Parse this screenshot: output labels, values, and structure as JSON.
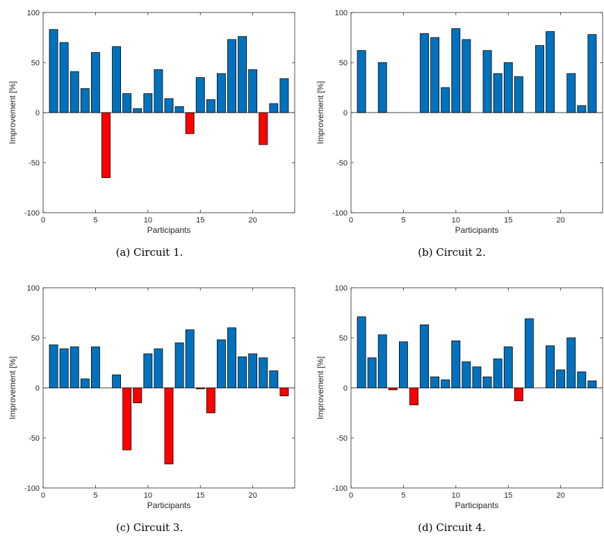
{
  "colors": {
    "positive": "#0072BD",
    "negative": "#FF0000"
  },
  "chart_data": [
    {
      "type": "bar",
      "caption": "(a)  Circuit 1.",
      "xlabel": "Participants",
      "ylabel": "Improvement [%]",
      "xlim": [
        0,
        24
      ],
      "ylim": [
        -100,
        100
      ],
      "xticks": [
        0,
        5,
        10,
        15,
        20
      ],
      "yticks": [
        -100,
        -50,
        0,
        50,
        100
      ],
      "categories": [
        1,
        2,
        3,
        4,
        5,
        6,
        7,
        8,
        9,
        10,
        11,
        12,
        13,
        14,
        15,
        16,
        17,
        18,
        19,
        20,
        21,
        22,
        23
      ],
      "values": [
        83,
        70,
        41,
        24,
        60,
        -65,
        66,
        19,
        4,
        19,
        43,
        14,
        6,
        -21,
        35,
        13,
        39,
        73,
        76,
        43,
        -32,
        9,
        34
      ]
    },
    {
      "type": "bar",
      "caption": "(b)  Circuit 2.",
      "xlabel": "Participants",
      "ylabel": "Improvement [%]",
      "xlim": [
        0,
        24
      ],
      "ylim": [
        -100,
        100
      ],
      "xticks": [
        0,
        5,
        10,
        15,
        20
      ],
      "yticks": [
        -100,
        -50,
        0,
        50,
        100
      ],
      "categories": [
        1,
        2,
        3,
        4,
        5,
        6,
        7,
        8,
        9,
        10,
        11,
        12,
        13,
        14,
        15,
        16,
        17,
        18,
        19,
        20,
        21,
        22,
        23
      ],
      "values": [
        62,
        0,
        50,
        0,
        0,
        0,
        79,
        75,
        25,
        84,
        73,
        0,
        62,
        39,
        50,
        36,
        0,
        67,
        81,
        0,
        39,
        7,
        78
      ]
    },
    {
      "type": "bar",
      "caption": "(c)  Circuit 3.",
      "xlabel": "Participants",
      "ylabel": "Improvement [%]",
      "xlim": [
        0,
        24
      ],
      "ylim": [
        -100,
        100
      ],
      "xticks": [
        0,
        5,
        10,
        15,
        20
      ],
      "yticks": [
        -100,
        -50,
        0,
        50,
        100
      ],
      "categories": [
        1,
        2,
        3,
        4,
        5,
        6,
        7,
        8,
        9,
        10,
        11,
        12,
        13,
        14,
        15,
        16,
        17,
        18,
        19,
        20,
        21,
        22,
        23
      ],
      "values": [
        43,
        39,
        41,
        9,
        41,
        0,
        13,
        -62,
        -15,
        34,
        39,
        -76,
        45,
        58,
        -1,
        -25,
        48,
        60,
        31,
        34,
        30,
        17,
        -8
      ]
    },
    {
      "type": "bar",
      "caption": "(d)  Circuit 4.",
      "xlabel": "Participants",
      "ylabel": "Improvement [%]",
      "xlim": [
        0,
        24
      ],
      "ylim": [
        -100,
        100
      ],
      "xticks": [
        0,
        5,
        10,
        15,
        20
      ],
      "yticks": [
        -100,
        -50,
        0,
        50,
        100
      ],
      "categories": [
        1,
        2,
        3,
        4,
        5,
        6,
        7,
        8,
        9,
        10,
        11,
        12,
        13,
        14,
        15,
        16,
        17,
        18,
        19,
        20,
        21,
        22,
        23
      ],
      "values": [
        71,
        30,
        53,
        -2,
        46,
        -17,
        63,
        11,
        8,
        47,
        26,
        21,
        11,
        29,
        41,
        -13,
        69,
        0,
        42,
        18,
        50,
        16,
        7
      ]
    }
  ]
}
